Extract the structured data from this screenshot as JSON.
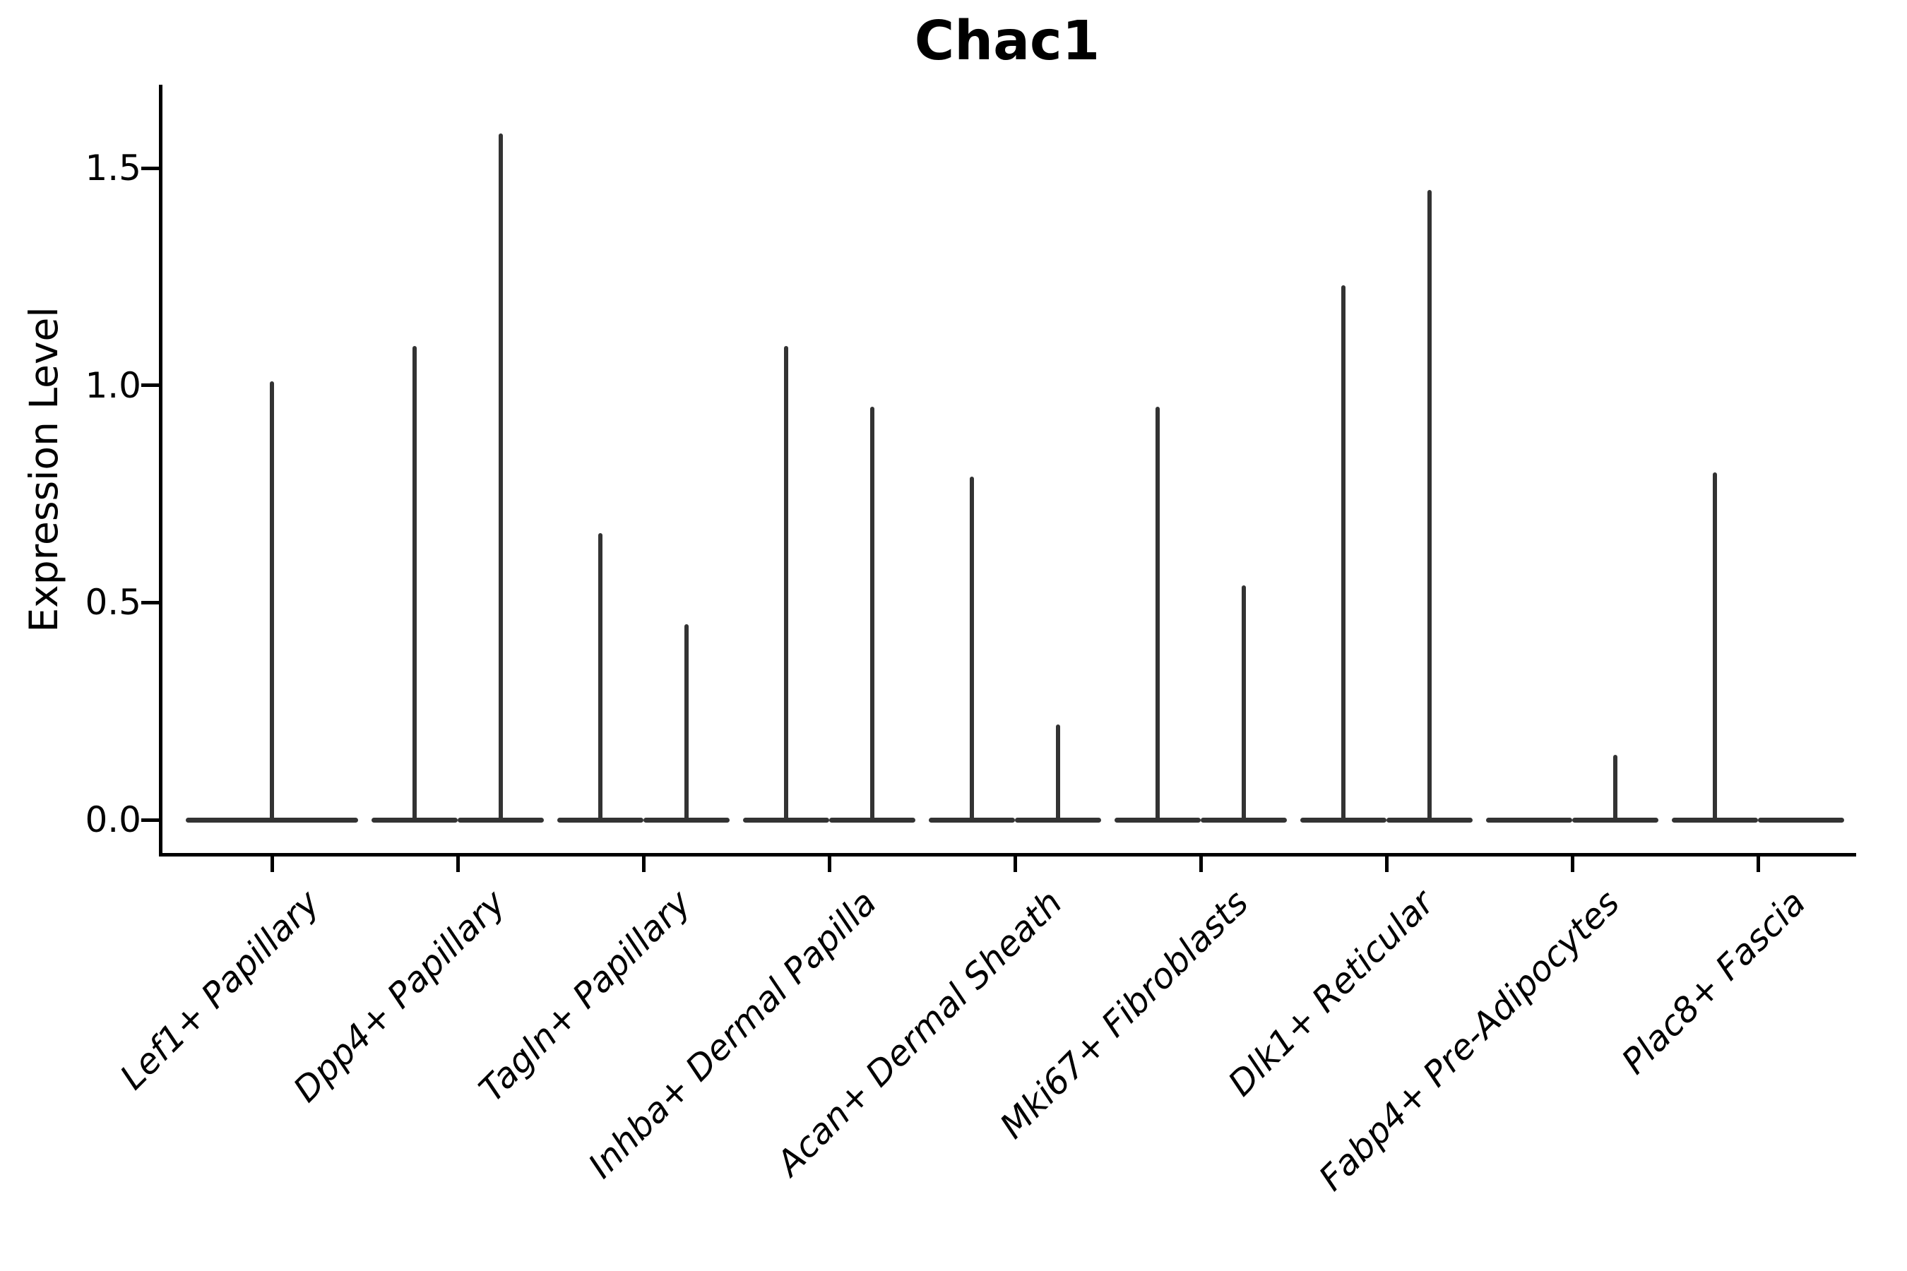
{
  "title": "Chac1",
  "chart_data": {
    "type": "violin",
    "title": "Chac1",
    "xlabel": "",
    "ylabel": "Expression Level",
    "ytick_labels": [
      "0.0",
      "0.5",
      "1.0",
      "1.5"
    ],
    "ytick_values": [
      0.0,
      0.5,
      1.0,
      1.5
    ],
    "ylim": [
      0,
      1.69
    ],
    "grid": false,
    "legend": "none",
    "violin_color": "#333333",
    "axis_color": "#000000",
    "categories": [
      "Lef1+ Papillary",
      "Dpp4+ Papillary",
      "Tagln+ Papillary",
      "Inhba+ Dermal Papilla",
      "Acan+ Dermal Sheath",
      "Mki67+ Fibroblasts",
      "Dlk1+ Reticular",
      "Fabp4+ Pre-Adipocytes",
      "Plac8+ Fascia"
    ],
    "series": [
      {
        "category": "Lef1+ Papillary",
        "violins": [
          {
            "position": "center",
            "peak_expression": 1.01
          }
        ]
      },
      {
        "category": "Dpp4+ Papillary",
        "violins": [
          {
            "position": "left",
            "peak_expression": 1.09
          },
          {
            "position": "right",
            "peak_expression": 1.58
          }
        ]
      },
      {
        "category": "Tagln+ Papillary",
        "violins": [
          {
            "position": "left",
            "peak_expression": 0.66
          },
          {
            "position": "right",
            "peak_expression": 0.45
          }
        ]
      },
      {
        "category": "Inhba+ Dermal Papilla",
        "violins": [
          {
            "position": "left",
            "peak_expression": 1.09
          },
          {
            "position": "right",
            "peak_expression": 0.95
          }
        ]
      },
      {
        "category": "Acan+ Dermal Sheath",
        "violins": [
          {
            "position": "left",
            "peak_expression": 0.79
          },
          {
            "position": "right",
            "peak_expression": 0.22
          }
        ]
      },
      {
        "category": "Mki67+ Fibroblasts",
        "violins": [
          {
            "position": "left",
            "peak_expression": 0.95
          },
          {
            "position": "right",
            "peak_expression": 0.54
          }
        ]
      },
      {
        "category": "Dlk1+ Reticular",
        "violins": [
          {
            "position": "left",
            "peak_expression": 1.23
          },
          {
            "position": "right",
            "peak_expression": 1.45
          }
        ]
      },
      {
        "category": "Fabp4+ Pre-Adipocytes",
        "violins": [
          {
            "position": "left",
            "peak_expression": 0.0
          },
          {
            "position": "right",
            "peak_expression": 0.15
          }
        ]
      },
      {
        "category": "Plac8+ Fascia",
        "violins": [
          {
            "position": "left",
            "peak_expression": 0.8
          },
          {
            "position": "right",
            "peak_expression": 0.0
          }
        ]
      }
    ]
  }
}
